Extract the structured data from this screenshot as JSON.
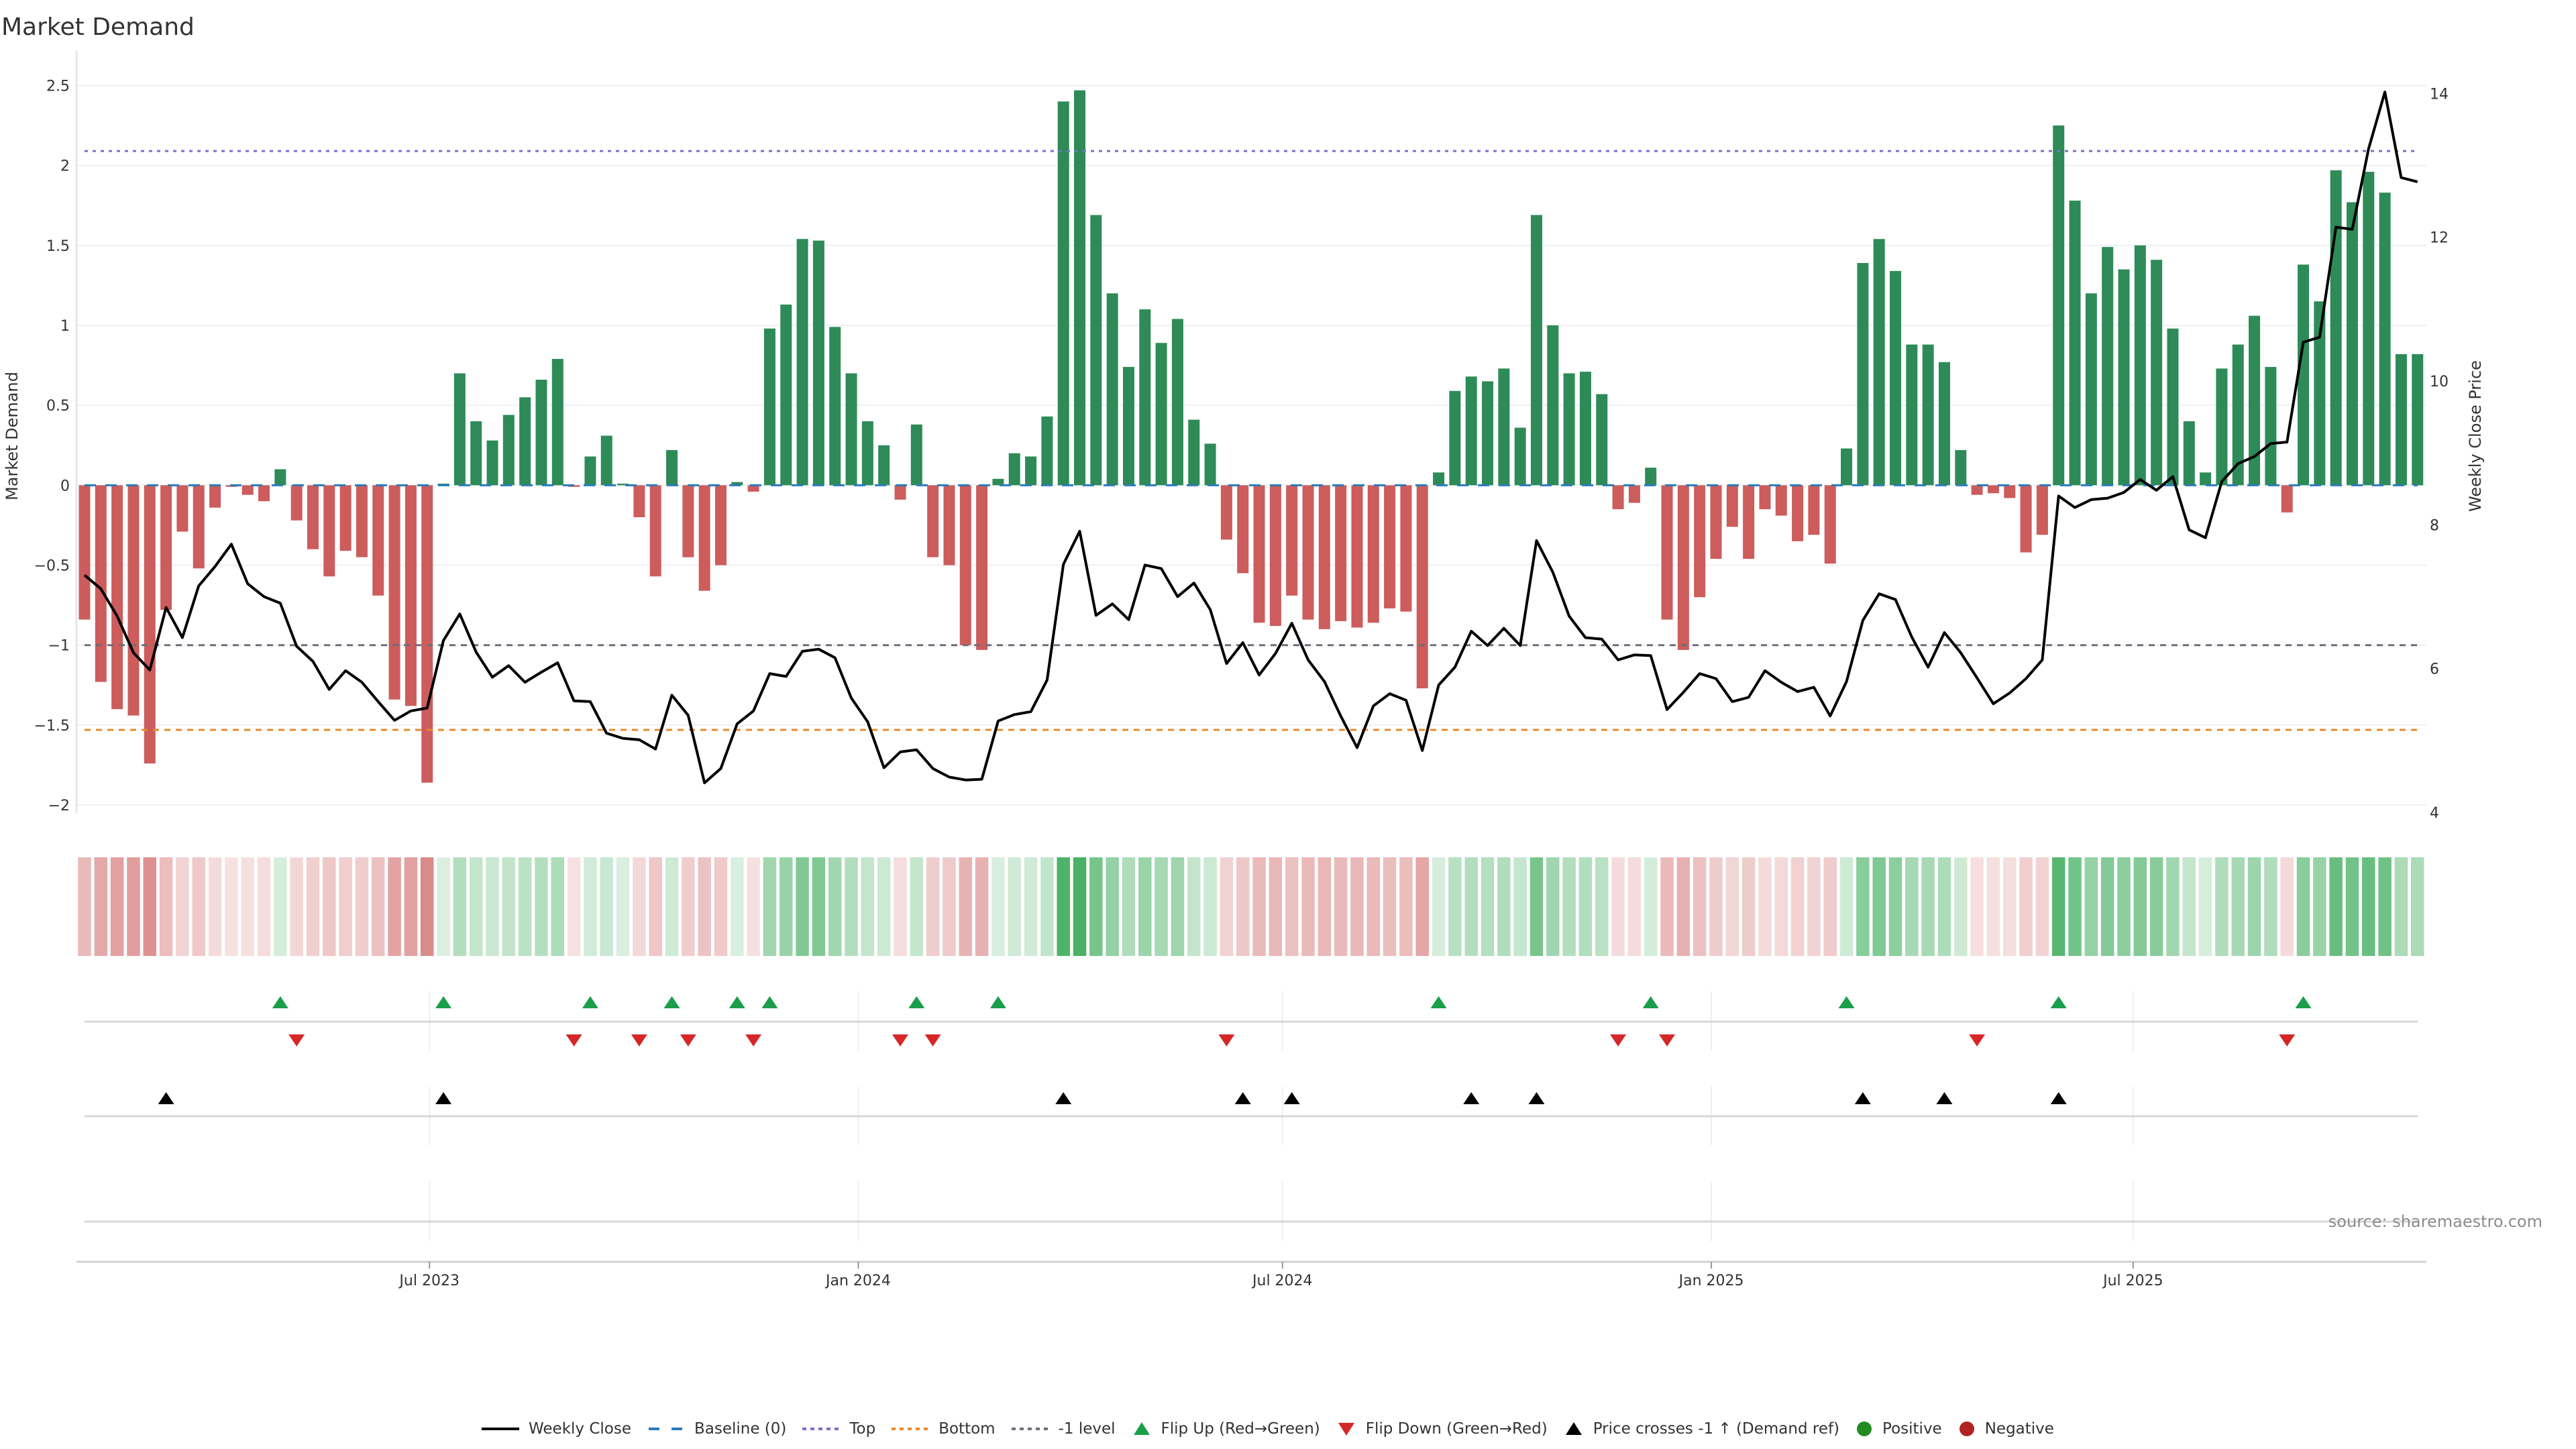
{
  "title": "Market Demand",
  "source": "source: sharemaestro.com",
  "legend": [
    {
      "label": "Weekly Close",
      "icon": "solid-line-icon"
    },
    {
      "label": "Baseline (0)",
      "icon": "dashed-line-icon"
    },
    {
      "label": "Top",
      "icon": "dotted-line-icon"
    },
    {
      "label": "Bottom",
      "icon": "dotted-line-icon"
    },
    {
      "label": "-1 level",
      "icon": "dotted-line-icon"
    },
    {
      "label": "Flip Up (Red→Green)",
      "icon": "triangle-up-icon"
    },
    {
      "label": "Flip Down (Green→Red)",
      "icon": "triangle-down-icon"
    },
    {
      "label": "Price crosses -1 ↑ (Demand ref)",
      "icon": "triangle-up-icon"
    },
    {
      "label": "Positive",
      "icon": "circle-icon"
    },
    {
      "label": "Negative",
      "icon": "circle-icon"
    }
  ],
  "chart_data": {
    "type": "bar",
    "title": "Market Demand",
    "xlabel": "",
    "ylabel": "Market Demand",
    "y2label": "Weekly Close Price",
    "ylim": [
      -2.05,
      2.72
    ],
    "y2lim": [
      3.99,
      14.6
    ],
    "grid": true,
    "legend_position": "bottom",
    "y_ticks": [
      2.5,
      2,
      1.5,
      1,
      0.5,
      0,
      -0.5,
      -1,
      -1.5,
      -2
    ],
    "y_tick_labels": [
      "2.5",
      "2",
      "1.5",
      "1",
      "0.5",
      "0",
      "−0.5",
      "−1",
      "−1.5",
      "−2"
    ],
    "y2_ticks": [
      14,
      12,
      10,
      8,
      6,
      4
    ],
    "y2_tick_labels": [
      "14",
      "12",
      "10",
      "8",
      "6",
      "4"
    ],
    "x_start": "2023-02-03",
    "x_step_days": 7,
    "x_ticks": [
      {
        "label": "Jul 2023",
        "date": "2023-07-01"
      },
      {
        "label": "Jan 2024",
        "date": "2024-01-01"
      },
      {
        "label": "Jul 2024",
        "date": "2024-07-01"
      },
      {
        "label": "Jan 2025",
        "date": "2025-01-01"
      },
      {
        "label": "Jul 2025",
        "date": "2025-07-01"
      }
    ],
    "series": [
      {
        "name": "Market Demand",
        "axis": "left",
        "values": [
          -0.84,
          -1.23,
          -1.4,
          -1.44,
          -1.74,
          -0.78,
          -0.29,
          -0.52,
          -0.14,
          -0.01,
          -0.06,
          -0.1,
          0.1,
          -0.22,
          -0.4,
          -0.57,
          -0.41,
          -0.45,
          -0.69,
          -1.34,
          -1.38,
          -1.86,
          0.01,
          0.7,
          0.4,
          0.28,
          0.44,
          0.55,
          0.66,
          0.79,
          -0.01,
          0.18,
          0.31,
          0.01,
          -0.2,
          -0.57,
          0.22,
          -0.45,
          -0.66,
          -0.5,
          0.02,
          -0.04,
          0.98,
          1.13,
          1.54,
          1.53,
          0.99,
          0.7,
          0.4,
          0.25,
          -0.09,
          0.38,
          -0.45,
          -0.5,
          -1.0,
          -1.03,
          0.04,
          0.2,
          0.18,
          0.43,
          2.4,
          2.47,
          1.69,
          1.2,
          0.74,
          1.1,
          0.89,
          1.04,
          0.41,
          0.26,
          -0.34,
          -0.55,
          -0.86,
          -0.88,
          -0.69,
          -0.84,
          -0.9,
          -0.85,
          -0.89,
          -0.86,
          -0.77,
          -0.79,
          -1.27,
          0.08,
          0.59,
          0.68,
          0.65,
          0.73,
          0.36,
          1.69,
          1.0,
          0.7,
          0.71,
          0.57,
          -0.15,
          -0.11,
          0.11,
          -0.84,
          -1.03,
          -0.7,
          -0.46,
          -0.26,
          -0.46,
          -0.15,
          -0.19,
          -0.35,
          -0.31,
          -0.49,
          0.23,
          1.39,
          1.54,
          1.34,
          0.88,
          0.88,
          0.77,
          0.22,
          -0.06,
          -0.05,
          -0.08,
          -0.42,
          -0.31,
          2.25,
          1.78,
          1.2,
          1.49,
          1.35,
          1.5,
          1.41,
          0.98,
          0.4,
          0.08,
          0.73,
          0.88,
          1.06,
          0.74,
          -0.17,
          1.38,
          1.15,
          1.97,
          1.77,
          1.96,
          1.83,
          0.82,
          0.82
        ]
      },
      {
        "name": "Weekly Close",
        "axis": "right",
        "values": [
          7.3,
          7.11,
          6.73,
          6.22,
          5.98,
          6.85,
          6.43,
          7.15,
          7.42,
          7.73,
          7.18,
          7.0,
          6.91,
          6.31,
          6.1,
          5.71,
          5.97,
          5.81,
          5.54,
          5.28,
          5.41,
          5.45,
          6.39,
          6.76,
          6.23,
          5.88,
          6.04,
          5.81,
          5.95,
          6.08,
          5.55,
          5.54,
          5.1,
          5.03,
          5.01,
          4.88,
          5.63,
          5.35,
          4.41,
          4.61,
          5.23,
          5.41,
          5.93,
          5.89,
          6.24,
          6.27,
          6.15,
          5.59,
          5.26,
          4.62,
          4.84,
          4.87,
          4.61,
          4.49,
          4.45,
          4.46,
          5.27,
          5.36,
          5.4,
          5.84,
          7.45,
          7.91,
          6.74,
          6.9,
          6.68,
          7.44,
          7.39,
          7.0,
          7.19,
          6.82,
          6.07,
          6.36,
          5.91,
          6.21,
          6.63,
          6.12,
          5.82,
          5.34,
          4.9,
          5.48,
          5.65,
          5.56,
          4.86,
          5.77,
          6.02,
          6.52,
          6.32,
          6.56,
          6.32,
          7.78,
          7.34,
          6.73,
          6.43,
          6.41,
          6.12,
          6.19,
          6.18,
          5.43,
          5.67,
          5.93,
          5.86,
          5.54,
          5.6,
          5.97,
          5.81,
          5.68,
          5.74,
          5.34,
          5.82,
          6.67,
          7.04,
          6.96,
          6.44,
          6.02,
          6.5,
          6.22,
          5.87,
          5.51,
          5.66,
          5.86,
          6.12,
          8.4,
          8.24,
          8.35,
          8.37,
          8.45,
          8.63,
          8.48,
          8.67,
          7.93,
          7.82,
          8.6,
          8.85,
          8.95,
          9.13,
          9.15,
          10.54,
          10.61,
          12.14,
          12.11,
          13.23,
          14.02,
          12.83,
          12.77
        ]
      }
    ],
    "reference_lines": {
      "baseline": 0,
      "top": 2.09,
      "bottom": -1.53,
      "minus_one": -1
    },
    "markers": {
      "flip_up": [
        13,
        23,
        32,
        37,
        41,
        43,
        52,
        57,
        84,
        97,
        109,
        122,
        137
      ],
      "flip_down": [
        14,
        31,
        35,
        38,
        42,
        51,
        53,
        71,
        95,
        98,
        117,
        136
      ],
      "price_cross": [
        6,
        23,
        61,
        72,
        75,
        86,
        90,
        110,
        115,
        122
      ]
    },
    "colors": {
      "positive_bar": "#2e8b57",
      "negative_bar": "#cd5c5c",
      "heat_positive": "#34a853",
      "heat_negative": "#cd5c5c",
      "price_line": "#000000",
      "baseline": "#2b7bb9",
      "top": "#7b6fd0",
      "bottom": "#e8892b",
      "minus_one": "#6e6e78",
      "flip_up": "#1a9e4a",
      "flip_down": "#d62728",
      "price_cross": "#000000",
      "positive_dot": "#228b22",
      "negative_dot": "#b22222"
    }
  }
}
